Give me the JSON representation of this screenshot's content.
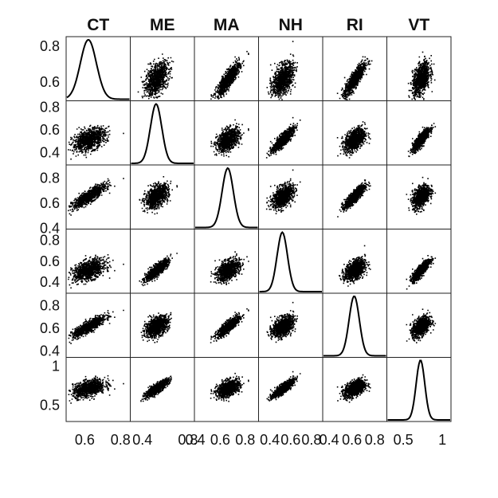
{
  "chart_data": {
    "type": "scatter",
    "subtype": "scatter-matrix",
    "variables": [
      "CT",
      "ME",
      "MA",
      "NH",
      "RI",
      "VT"
    ],
    "means": [
      0.62,
      0.52,
      0.66,
      0.52,
      0.62,
      0.72
    ],
    "stds": [
      0.045,
      0.05,
      0.045,
      0.05,
      0.045,
      0.055
    ],
    "correlations": [
      [
        1.0,
        0.45,
        0.85,
        0.45,
        0.85,
        0.45
      ],
      [
        0.45,
        1.0,
        0.45,
        0.85,
        0.45,
        0.85
      ],
      [
        0.85,
        0.45,
        1.0,
        0.45,
        0.85,
        0.45
      ],
      [
        0.45,
        0.85,
        0.45,
        1.0,
        0.45,
        0.85
      ],
      [
        0.85,
        0.45,
        0.85,
        0.45,
        1.0,
        0.45
      ],
      [
        0.45,
        0.85,
        0.45,
        0.85,
        0.45,
        1.0
      ]
    ],
    "axis_ranges": [
      [
        0.5,
        0.85
      ],
      [
        0.3,
        0.85
      ],
      [
        0.4,
        0.9
      ],
      [
        0.3,
        0.9
      ],
      [
        0.35,
        0.9
      ],
      [
        0.3,
        1.1
      ]
    ],
    "row_ticks": [
      {
        "labels": [
          "0.8",
          "0.6"
        ],
        "values": [
          0.8,
          0.6
        ]
      },
      {
        "labels": [
          "0.8",
          "0.6",
          "0.4"
        ],
        "values": [
          0.8,
          0.6,
          0.4
        ]
      },
      {
        "labels": [
          "0.8",
          "0.6",
          "0.4"
        ],
        "values": [
          0.8,
          0.6,
          0.4
        ]
      },
      {
        "labels": [
          "0.8",
          "0.6",
          "0.4"
        ],
        "values": [
          0.8,
          0.6,
          0.4
        ]
      },
      {
        "labels": [
          "0.8",
          "0.6",
          "0.4"
        ],
        "values": [
          0.8,
          0.6,
          0.4
        ]
      },
      {
        "labels": [
          "1",
          "0.5"
        ],
        "values": [
          1.0,
          0.5
        ]
      }
    ],
    "col_ticks": [
      {
        "labels": [
          "0.6",
          "0.8"
        ],
        "values": [
          0.6,
          0.8
        ]
      },
      {
        "labels": [
          "0.4",
          "0.8"
        ],
        "values": [
          0.4,
          0.8
        ]
      },
      {
        "labels": [
          "0.4",
          "0.6",
          "0.8"
        ],
        "values": [
          0.4,
          0.6,
          0.8
        ]
      },
      {
        "labels": [
          "0.4",
          "0.6",
          "0.8"
        ],
        "values": [
          0.4,
          0.6,
          0.8
        ]
      },
      {
        "labels": [
          "0.4",
          "0.6",
          "0.8"
        ],
        "values": [
          0.4,
          0.6,
          0.8
        ]
      },
      {
        "labels": [
          "0.5",
          "1"
        ],
        "values": [
          0.5,
          1.0
        ]
      }
    ],
    "n_points_per_panel": 1000,
    "grid": false,
    "colors": {
      "points": "#000000",
      "frame": "#222222"
    }
  }
}
